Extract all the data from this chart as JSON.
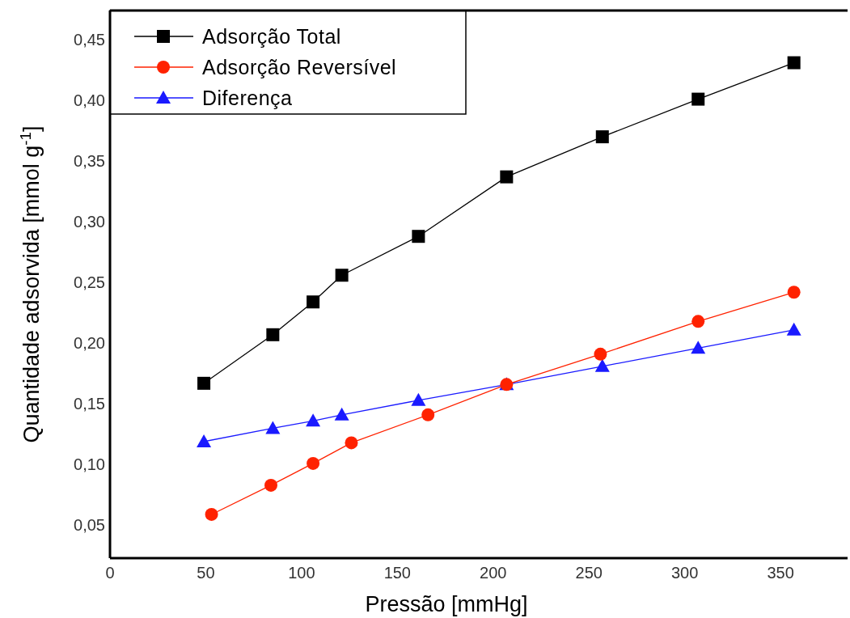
{
  "chart_data": {
    "type": "line",
    "xlabel": "Pressão [mmHg]",
    "ylabel": "Quantidade adsorvida [mmol g$^{-1}$]",
    "xlim": [
      0,
      385
    ],
    "xticks": [
      0,
      50,
      100,
      150,
      200,
      250,
      300,
      350
    ],
    "ylim": [
      0.023,
      0.474
    ],
    "yticks": [
      {
        "value": 0.05,
        "label": "0,05"
      },
      {
        "value": 0.1,
        "label": "0,10"
      },
      {
        "value": 0.15,
        "label": "0,15"
      },
      {
        "value": 0.2,
        "label": "0,20"
      },
      {
        "value": 0.25,
        "label": "0,25"
      },
      {
        "value": 0.3,
        "label": "0,30"
      },
      {
        "value": 0.35,
        "label": "0,35"
      },
      {
        "value": 0.4,
        "label": "0,40"
      },
      {
        "value": 0.45,
        "label": "0,45"
      }
    ],
    "legend": "top left",
    "grid": false,
    "line_style": "solid",
    "series": [
      {
        "name": "Adsorção Total",
        "color": "#000000",
        "marker": "square",
        "x": [
          49,
          85,
          106,
          121,
          161,
          207,
          257,
          307,
          357
        ],
        "values": [
          0.167,
          0.207,
          0.234,
          0.256,
          0.288,
          0.337,
          0.37,
          0.401,
          0.431
        ]
      },
      {
        "name": "Adsorção Reversível",
        "color": "#ff2200",
        "marker": "circle",
        "x": [
          53,
          84,
          106,
          126,
          166,
          207,
          256,
          307,
          357
        ],
        "values": [
          0.059,
          0.083,
          0.101,
          0.118,
          0.141,
          0.166,
          0.191,
          0.218,
          0.242
        ]
      },
      {
        "name": "Diferença",
        "color": "#1a1aff",
        "marker": "triangle",
        "x": [
          49,
          85,
          106,
          121,
          161,
          207,
          257,
          307,
          357
        ],
        "values": [
          0.119,
          0.13,
          0.136,
          0.141,
          0.153,
          0.166,
          0.181,
          0.196,
          0.211
        ]
      }
    ]
  }
}
